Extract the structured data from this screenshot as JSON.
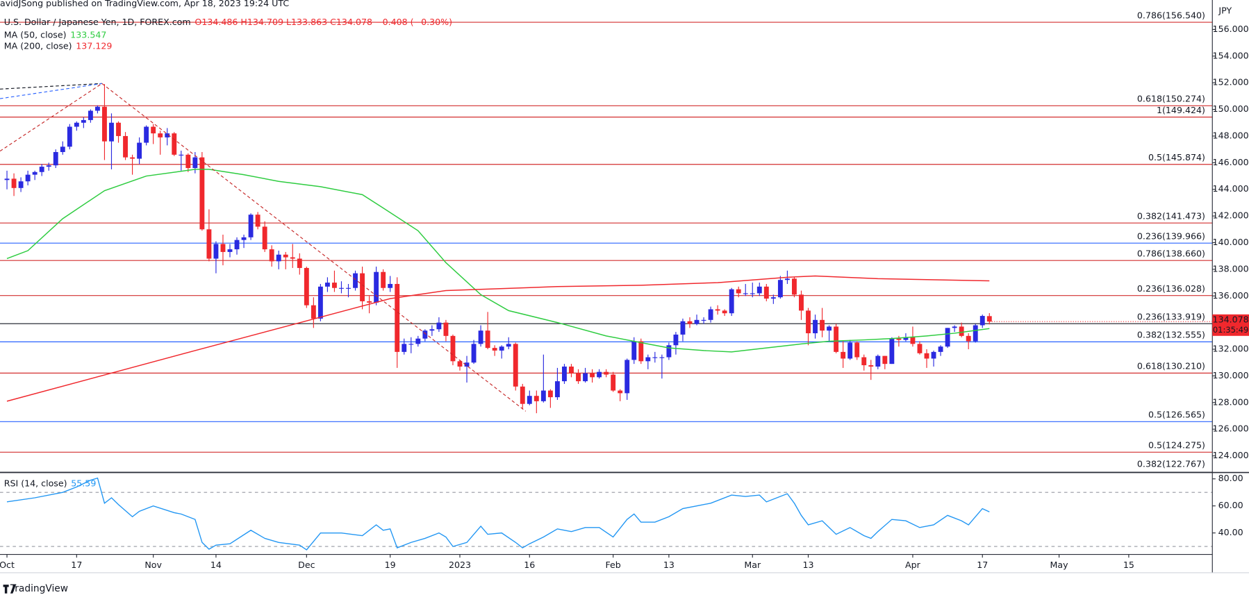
{
  "header": "avidJSong published on TradingView.com, Apr 18, 2023 19:24 UTC",
  "footer": "TradingView",
  "chart_data": {
    "type": "candlestick",
    "title": "U.S. Dollar / Japanese Yen, 1D, FOREX.com",
    "ohlc_label": "O134.486 H134.709 L133.863 C134.078 −0.408 (−0.30%)",
    "currency": "JPY",
    "up_color": "#2a2ae0",
    "down_color": "#f0282d",
    "ohlc": [
      [
        144.7,
        145.4,
        144.0,
        144.8
      ],
      [
        144.8,
        145.2,
        143.5,
        144.1
      ],
      [
        144.1,
        144.9,
        143.8,
        144.6
      ],
      [
        144.6,
        145.4,
        144.3,
        145.1
      ],
      [
        145.1,
        145.4,
        144.7,
        145.3
      ],
      [
        145.3,
        145.9,
        145.0,
        145.7
      ],
      [
        145.7,
        146.0,
        145.4,
        145.8
      ],
      [
        145.8,
        147.0,
        145.6,
        146.8
      ],
      [
        146.8,
        147.6,
        146.6,
        147.2
      ],
      [
        147.2,
        148.9,
        147.0,
        148.7
      ],
      [
        148.7,
        149.1,
        148.4,
        149.0
      ],
      [
        149.0,
        149.4,
        148.6,
        149.2
      ],
      [
        149.2,
        150.0,
        149.0,
        149.9
      ],
      [
        149.9,
        150.3,
        149.7,
        150.2
      ],
      [
        150.2,
        151.9,
        146.2,
        147.6
      ],
      [
        147.6,
        149.7,
        145.5,
        149.0
      ],
      [
        149.0,
        149.1,
        147.5,
        148.0
      ],
      [
        148.0,
        148.3,
        146.2,
        146.4
      ],
      [
        146.4,
        146.6,
        145.1,
        146.3
      ],
      [
        146.3,
        147.9,
        145.9,
        147.5
      ],
      [
        147.5,
        148.8,
        147.3,
        148.7
      ],
      [
        148.7,
        148.9,
        147.4,
        148.2
      ],
      [
        148.2,
        148.4,
        146.6,
        147.9
      ],
      [
        147.9,
        148.6,
        147.3,
        148.2
      ],
      [
        148.2,
        148.3,
        146.5,
        146.6
      ],
      [
        146.6,
        146.9,
        145.4,
        146.6
      ],
      [
        146.6,
        146.7,
        145.3,
        145.6
      ],
      [
        145.6,
        146.8,
        145.2,
        146.4
      ],
      [
        146.4,
        146.8,
        140.9,
        141.0
      ],
      [
        141.0,
        142.5,
        138.6,
        138.8
      ],
      [
        138.8,
        140.1,
        137.7,
        139.9
      ],
      [
        139.9,
        140.6,
        138.3,
        139.3
      ],
      [
        139.3,
        139.9,
        138.9,
        139.5
      ],
      [
        139.5,
        140.4,
        139.1,
        140.2
      ],
      [
        140.2,
        140.6,
        139.6,
        140.4
      ],
      [
        140.4,
        142.2,
        140.2,
        142.1
      ],
      [
        142.1,
        142.3,
        141.0,
        141.2
      ],
      [
        141.2,
        141.6,
        139.3,
        139.5
      ],
      [
        139.5,
        139.8,
        138.2,
        138.6
      ],
      [
        138.6,
        139.4,
        138.0,
        139.1
      ],
      [
        139.1,
        139.3,
        138.0,
        138.9
      ],
      [
        138.9,
        139.9,
        138.1,
        138.8
      ],
      [
        138.8,
        139.2,
        137.6,
        138.1
      ],
      [
        138.1,
        138.2,
        135.1,
        135.3
      ],
      [
        135.3,
        135.9,
        133.6,
        134.3
      ],
      [
        134.3,
        136.9,
        134.1,
        136.7
      ],
      [
        136.7,
        137.4,
        136.3,
        137.0
      ],
      [
        137.0,
        137.9,
        136.3,
        136.6
      ],
      [
        136.6,
        137.1,
        136.2,
        136.6
      ],
      [
        136.6,
        136.9,
        135.9,
        136.6
      ],
      [
        136.6,
        137.9,
        136.4,
        137.7
      ],
      [
        137.7,
        138.2,
        135.0,
        135.6
      ],
      [
        135.6,
        136.0,
        134.7,
        135.5
      ],
      [
        135.5,
        138.2,
        135.3,
        137.8
      ],
      [
        137.8,
        138.0,
        136.4,
        136.6
      ],
      [
        136.6,
        137.5,
        136.3,
        136.9
      ],
      [
        136.9,
        137.4,
        130.6,
        131.8
      ],
      [
        131.8,
        132.8,
        131.6,
        132.4
      ],
      [
        132.4,
        132.9,
        131.7,
        132.4
      ],
      [
        132.4,
        133.0,
        132.2,
        132.8
      ],
      [
        132.8,
        133.5,
        132.6,
        133.4
      ],
      [
        133.4,
        133.8,
        133.0,
        133.5
      ],
      [
        133.5,
        134.4,
        133.3,
        134.0
      ],
      [
        134.0,
        134.2,
        132.6,
        133.0
      ],
      [
        133.0,
        133.1,
        130.8,
        131.1
      ],
      [
        131.1,
        131.2,
        130.4,
        130.7
      ],
      [
        130.7,
        131.5,
        129.5,
        131.0
      ],
      [
        131.0,
        132.7,
        130.9,
        132.4
      ],
      [
        132.4,
        133.8,
        132.2,
        133.4
      ],
      [
        133.4,
        134.8,
        132.0,
        132.1
      ],
      [
        132.1,
        132.3,
        131.5,
        131.9
      ],
      [
        131.9,
        132.3,
        131.3,
        132.2
      ],
      [
        132.2,
        132.9,
        132.0,
        132.4
      ],
      [
        132.4,
        132.5,
        128.9,
        129.2
      ],
      [
        129.2,
        129.4,
        127.5,
        127.9
      ],
      [
        127.9,
        128.9,
        127.8,
        128.5
      ],
      [
        128.5,
        128.9,
        127.2,
        128.1
      ],
      [
        128.1,
        131.6,
        128.0,
        128.9
      ],
      [
        128.9,
        129.0,
        127.6,
        128.4
      ],
      [
        128.4,
        130.6,
        128.2,
        129.6
      ],
      [
        129.6,
        130.9,
        129.4,
        130.7
      ],
      [
        130.7,
        130.9,
        129.9,
        130.2
      ],
      [
        130.2,
        130.5,
        129.4,
        129.6
      ],
      [
        129.6,
        130.6,
        129.5,
        130.2
      ],
      [
        130.2,
        130.5,
        129.5,
        129.9
      ],
      [
        129.9,
        130.5,
        129.8,
        130.3
      ],
      [
        130.3,
        130.5,
        129.9,
        130.1
      ],
      [
        130.1,
        130.3,
        128.8,
        128.9
      ],
      [
        128.9,
        129.0,
        128.1,
        128.7
      ],
      [
        128.7,
        131.3,
        128.2,
        131.2
      ],
      [
        131.2,
        132.9,
        130.9,
        132.6
      ],
      [
        132.6,
        132.8,
        130.9,
        131.1
      ],
      [
        131.1,
        131.6,
        130.5,
        131.4
      ],
      [
        131.4,
        131.8,
        131.0,
        131.4
      ],
      [
        131.4,
        131.6,
        129.8,
        131.4
      ],
      [
        131.4,
        132.5,
        131.2,
        132.3
      ],
      [
        132.3,
        133.3,
        131.6,
        133.1
      ],
      [
        133.1,
        134.3,
        132.6,
        134.1
      ],
      [
        134.1,
        134.4,
        133.6,
        133.9
      ],
      [
        133.9,
        134.6,
        133.8,
        134.2
      ],
      [
        134.2,
        134.4,
        133.9,
        134.2
      ],
      [
        134.2,
        135.2,
        134.0,
        135.0
      ],
      [
        135.0,
        135.3,
        134.6,
        134.9
      ],
      [
        134.9,
        135.0,
        134.5,
        134.7
      ],
      [
        134.7,
        136.6,
        134.5,
        136.5
      ],
      [
        136.5,
        136.7,
        135.9,
        136.2
      ],
      [
        136.2,
        136.9,
        136.0,
        136.2
      ],
      [
        136.2,
        137.0,
        135.9,
        136.2
      ],
      [
        136.2,
        137.0,
        136.0,
        136.7
      ],
      [
        136.7,
        136.9,
        135.6,
        135.8
      ],
      [
        135.8,
        136.1,
        135.4,
        135.9
      ],
      [
        135.9,
        137.5,
        135.8,
        137.2
      ],
      [
        137.2,
        137.9,
        136.9,
        137.3
      ],
      [
        137.3,
        137.4,
        135.9,
        136.1
      ],
      [
        136.1,
        136.4,
        134.2,
        134.9
      ],
      [
        134.9,
        135.1,
        132.3,
        133.2
      ],
      [
        133.2,
        134.6,
        132.8,
        134.2
      ],
      [
        134.2,
        135.1,
        132.9,
        133.4
      ],
      [
        133.4,
        133.8,
        132.6,
        133.7
      ],
      [
        133.7,
        133.9,
        131.7,
        131.8
      ],
      [
        131.8,
        132.6,
        130.6,
        131.3
      ],
      [
        131.3,
        132.7,
        131.2,
        132.5
      ],
      [
        132.5,
        132.6,
        131.2,
        131.4
      ],
      [
        131.4,
        131.6,
        130.4,
        130.8
      ],
      [
        130.8,
        131.2,
        129.7,
        130.7
      ],
      [
        130.7,
        131.6,
        130.5,
        131.5
      ],
      [
        131.5,
        131.5,
        130.5,
        130.9
      ],
      [
        130.9,
        132.9,
        130.9,
        132.8
      ],
      [
        132.8,
        133.0,
        132.2,
        132.7
      ],
      [
        132.7,
        133.2,
        132.6,
        132.9
      ],
      [
        132.9,
        133.7,
        132.2,
        132.4
      ],
      [
        132.4,
        132.6,
        131.6,
        131.7
      ],
      [
        131.7,
        132.0,
        130.6,
        131.3
      ],
      [
        131.3,
        131.9,
        130.7,
        131.8
      ],
      [
        131.8,
        132.3,
        131.5,
        132.2
      ],
      [
        132.2,
        133.6,
        132.1,
        133.6
      ],
      [
        133.6,
        133.8,
        133.3,
        133.7
      ],
      [
        133.7,
        134.0,
        132.9,
        133.0
      ],
      [
        133.0,
        133.2,
        132.0,
        132.6
      ],
      [
        132.6,
        133.9,
        132.5,
        133.8
      ],
      [
        133.8,
        134.6,
        133.6,
        134.5
      ],
      [
        134.486,
        134.709,
        133.863,
        134.078
      ]
    ],
    "xlim": [
      -1,
      173
    ],
    "xticks": [
      {
        "value": 0,
        "label": "Oct"
      },
      {
        "value": 10,
        "label": "17"
      },
      {
        "value": 21,
        "label": "Nov"
      },
      {
        "value": 30,
        "label": "14"
      },
      {
        "value": 43,
        "label": "Dec"
      },
      {
        "value": 55,
        "label": "19"
      },
      {
        "value": 65,
        "label": "2023"
      },
      {
        "value": 75,
        "label": "16"
      },
      {
        "value": 87,
        "label": "Feb"
      },
      {
        "value": 95,
        "label": "13"
      },
      {
        "value": 107,
        "label": "Mar"
      },
      {
        "value": 115,
        "label": "13"
      },
      {
        "value": 130,
        "label": "Apr"
      },
      {
        "value": 140,
        "label": "17"
      },
      {
        "value": 151,
        "label": "May"
      },
      {
        "value": 161,
        "label": "15"
      }
    ],
    "ylim": [
      122.75,
      158.21
    ],
    "yticks": [
      {
        "value": 124,
        "label": "124.000"
      },
      {
        "value": 126,
        "label": "126.000"
      },
      {
        "value": 128,
        "label": "128.000"
      },
      {
        "value": 130,
        "label": "130.000"
      },
      {
        "value": 132,
        "label": "132.000"
      },
      {
        "value": 134,
        "label": "134.000"
      },
      {
        "value": 136,
        "label": "136.000"
      },
      {
        "value": 138,
        "label": "138.000"
      },
      {
        "value": 140,
        "label": "140.000"
      },
      {
        "value": 142,
        "label": "142.000"
      },
      {
        "value": 144,
        "label": "144.000"
      },
      {
        "value": 146,
        "label": "146.000"
      },
      {
        "value": 148,
        "label": "148.000"
      },
      {
        "value": 150,
        "label": "150.000"
      },
      {
        "value": 152,
        "label": "152.000"
      },
      {
        "value": 154,
        "label": "154.000"
      },
      {
        "value": 156,
        "label": "156.000"
      }
    ],
    "last_price": 134.078,
    "countdown": "01:35:49",
    "moving_averages": [
      {
        "name": "MA (50, close)",
        "value_label": "133.547",
        "color": "#2ecc40",
        "x": [
          0,
          3,
          8,
          14,
          20,
          27,
          29,
          34,
          39,
          45,
          51,
          54,
          59,
          63,
          68,
          72,
          79,
          86,
          91,
          95,
          100,
          104,
          109,
          114,
          118,
          123,
          127,
          132,
          136,
          141
        ],
        "values": [
          138.8,
          139.4,
          141.8,
          143.9,
          145.0,
          145.5,
          145.5,
          145.1,
          144.6,
          144.2,
          143.6,
          142.6,
          140.9,
          138.5,
          136.1,
          134.9,
          134.0,
          133.0,
          132.5,
          132.1,
          131.9,
          131.8,
          132.1,
          132.4,
          132.6,
          132.7,
          132.8,
          133.0,
          133.2,
          133.547
        ]
      },
      {
        "name": "MA (200, close)",
        "value_label": "137.129",
        "color": "#f0282d",
        "x": [
          0,
          27,
          55,
          63,
          79,
          91,
          102,
          112,
          116,
          125,
          141
        ],
        "values": [
          128.1,
          131.9,
          135.8,
          136.4,
          136.7,
          136.8,
          137.0,
          137.4,
          137.5,
          137.3,
          137.129
        ]
      }
    ],
    "fib_levels": [
      {
        "label": "0.786(156.540)",
        "value": 156.54,
        "color": "#d32f2f"
      },
      {
        "label": "0.618(150.274)",
        "value": 150.274,
        "color": "#d32f2f"
      },
      {
        "label": "1(149.424)",
        "value": 149.424,
        "color": "#d32f2f"
      },
      {
        "label": "0.5(145.874)",
        "value": 145.874,
        "color": "#d32f2f"
      },
      {
        "label": "0.382(141.473)",
        "value": 141.473,
        "color": "#d32f2f"
      },
      {
        "label": "0.236(139.966)",
        "value": 139.966,
        "color": "#2962ff"
      },
      {
        "label": "0.786(138.660)",
        "value": 138.66,
        "color": "#d32f2f"
      },
      {
        "label": "0.236(136.028)",
        "value": 136.028,
        "color": "#d32f2f"
      },
      {
        "label": "0.236(133.919)",
        "value": 133.919,
        "color": "#131722"
      },
      {
        "label": "0.382(132.555)",
        "value": 132.555,
        "color": "#2962ff"
      },
      {
        "label": "0.618(130.210)",
        "value": 130.21,
        "color": "#d32f2f"
      },
      {
        "label": "0.5(126.565)",
        "value": 126.565,
        "color": "#2962ff"
      },
      {
        "label": "0.5(124.275)",
        "value": 124.275,
        "color": "#d32f2f"
      },
      {
        "label": "0.382(122.767)",
        "value": 122.767,
        "color": "#131722"
      }
    ],
    "rsi": {
      "name": "RSI (14, close)",
      "value_label": "55.59",
      "color": "#2196f3",
      "x": [
        0,
        4,
        8,
        10,
        12,
        13,
        14,
        15,
        16,
        18,
        19,
        21,
        24,
        25,
        27,
        28,
        29,
        30,
        32,
        35,
        37,
        39,
        42,
        43,
        45,
        48,
        51,
        53,
        54,
        55,
        56,
        58,
        60,
        62,
        63,
        64,
        66,
        68,
        69,
        71,
        73,
        74,
        75,
        77,
        79,
        81,
        83,
        85,
        87,
        89,
        90,
        91,
        93,
        95,
        97,
        99,
        101,
        104,
        106,
        108,
        109,
        111,
        112,
        113,
        114,
        115,
        117,
        119,
        121,
        123,
        124,
        125,
        127,
        129,
        131,
        133,
        135,
        137,
        138,
        140,
        141
      ],
      "values": [
        63,
        66,
        70,
        74,
        79,
        80.6,
        62,
        66,
        61,
        52,
        56,
        60,
        55,
        54,
        50,
        33,
        28,
        31,
        32,
        42,
        36,
        33,
        31,
        27.5,
        40,
        40,
        38,
        46,
        42,
        43,
        29,
        33,
        36,
        40,
        37,
        30,
        33,
        45,
        39,
        40,
        33,
        29,
        32,
        37,
        43,
        41,
        44,
        44,
        37,
        50,
        54,
        48,
        48,
        52,
        58,
        60,
        62,
        68,
        67,
        68,
        63,
        67,
        69,
        62,
        53,
        46,
        49,
        39,
        44,
        38,
        36,
        41,
        50,
        49,
        44,
        46,
        53,
        49,
        46,
        58,
        55.59
      ],
      "ylim": [
        24.1,
        84.7
      ],
      "yticks": [
        {
          "value": 40,
          "label": "40.00"
        },
        {
          "value": 60,
          "label": "60.00"
        },
        {
          "value": 80,
          "label": "80.00"
        }
      ],
      "levels": [
        30,
        70
      ]
    }
  }
}
